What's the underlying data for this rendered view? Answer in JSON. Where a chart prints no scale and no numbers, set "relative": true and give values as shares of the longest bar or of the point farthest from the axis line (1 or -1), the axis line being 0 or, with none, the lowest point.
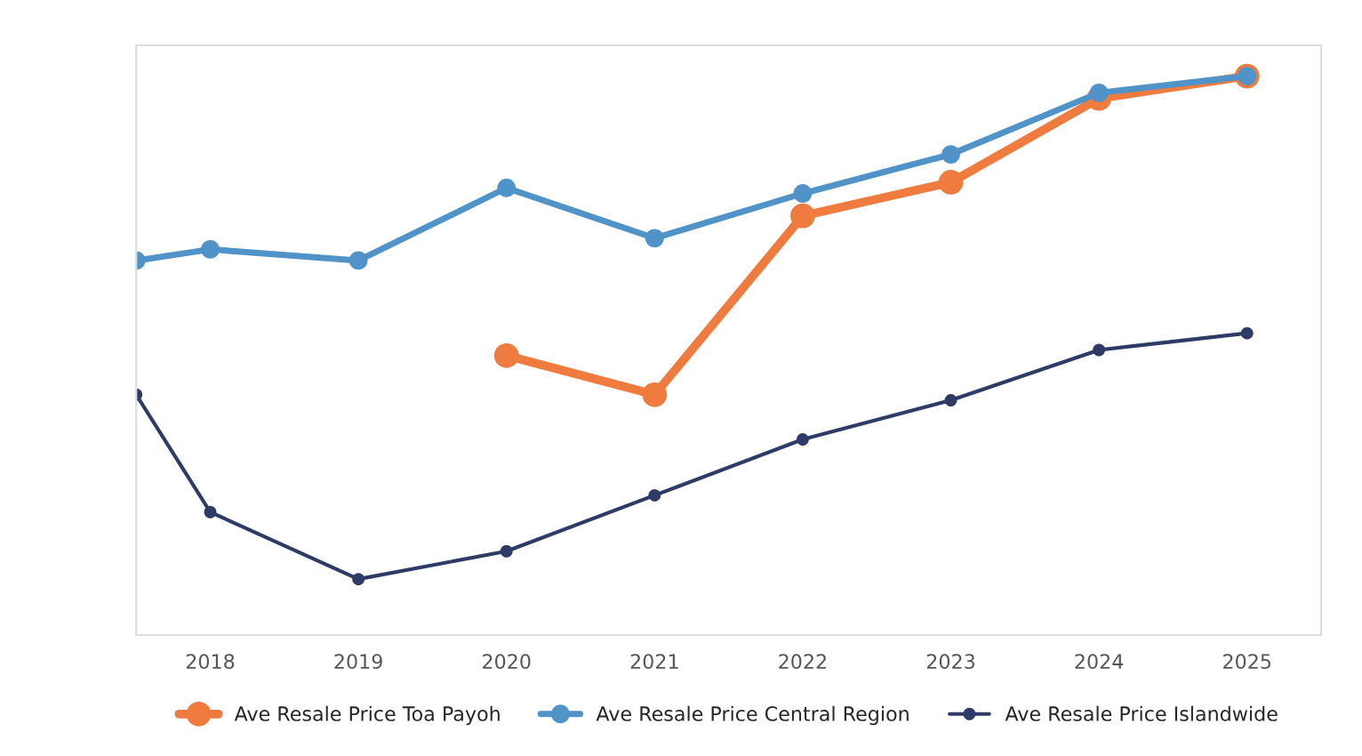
{
  "chart_data": {
    "type": "line",
    "relative": true,
    "series": [
      {
        "name": "Ave Resale Price Toa Payoh",
        "color": "#ef7b3e",
        "x": [
          2020,
          2021,
          2022,
          2023,
          2024,
          2025
        ],
        "values": [
          0.5,
          0.43,
          0.75,
          0.81,
          0.96,
          1.0
        ]
      },
      {
        "name": "Ave Resale Price Central Region",
        "color": "#4f93c9",
        "x": [
          2017.5,
          2018,
          2019,
          2020,
          2021,
          2022,
          2023,
          2024,
          2025
        ],
        "values": [
          0.67,
          0.69,
          0.67,
          0.8,
          0.71,
          0.79,
          0.86,
          0.97,
          1.0
        ]
      },
      {
        "name": "Ave Resale Price Islandwide",
        "color": "#2d3b66",
        "x": [
          2017.5,
          2018,
          2019,
          2020,
          2021,
          2022,
          2023,
          2024,
          2025
        ],
        "values": [
          0.43,
          0.22,
          0.1,
          0.15,
          0.25,
          0.35,
          0.42,
          0.51,
          0.54
        ]
      }
    ],
    "xlim": [
      2017.5,
      2025.5
    ],
    "xticks": [
      2018,
      2019,
      2020,
      2021,
      2022,
      2023,
      2024,
      2025
    ],
    "legend": "bottom",
    "marker": "circle",
    "line_style": "solid"
  }
}
